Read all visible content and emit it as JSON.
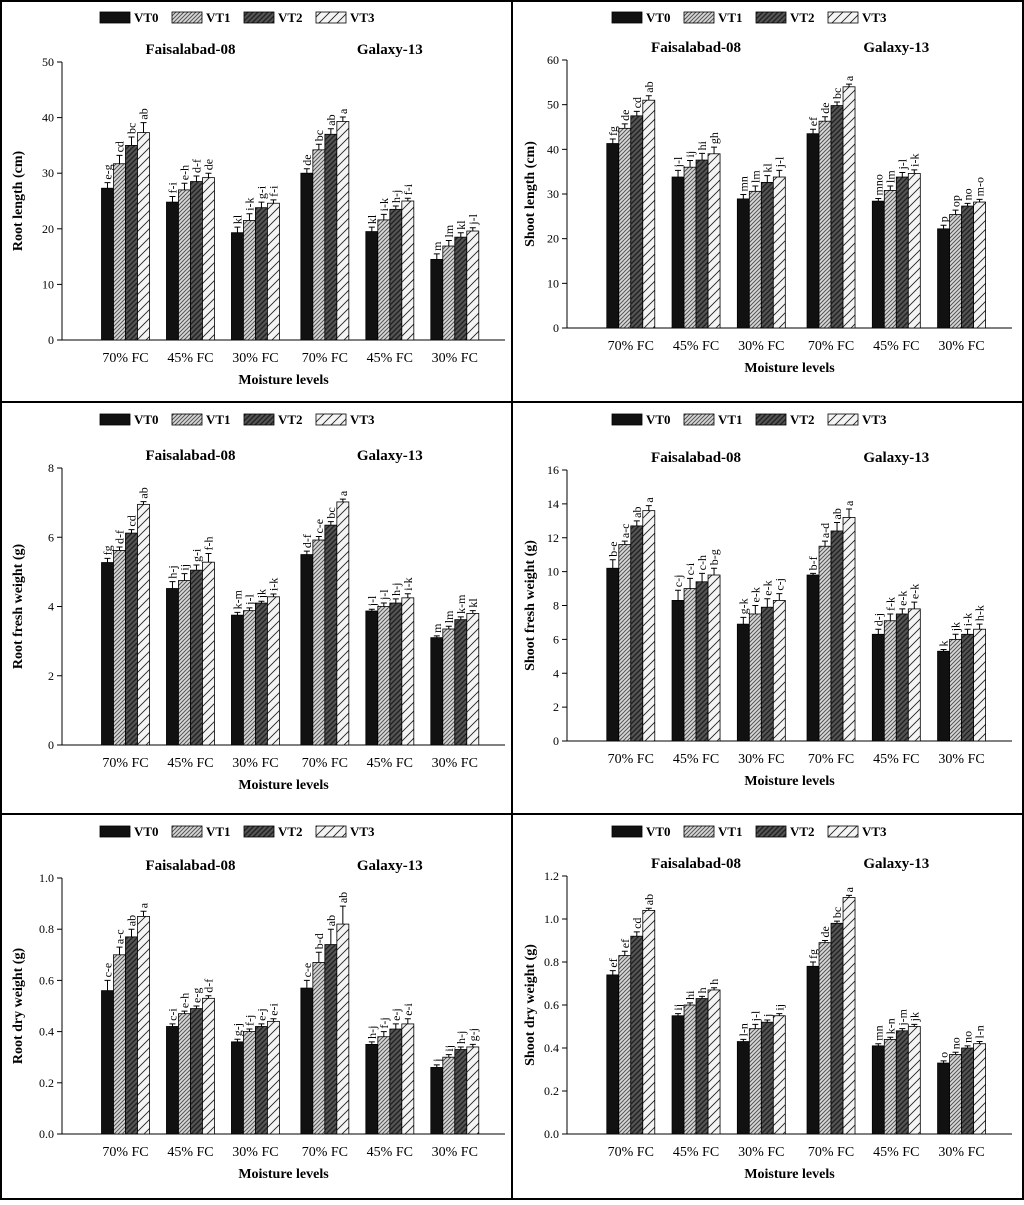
{
  "figure": {
    "legend_entries": [
      "VT0",
      "VT1",
      "VT2",
      "VT3"
    ],
    "groups": [
      "Faisalabad-08",
      "Galaxy-13"
    ],
    "moisture_levels": [
      "70% FC",
      "45% FC",
      "30% FC"
    ],
    "xlabel": "Moisture levels"
  },
  "chart_data": [
    {
      "type": "bar",
      "ylabel": "Root length (cm)",
      "xlabel": "Moisture levels",
      "ylim": [
        0,
        50
      ],
      "yticks": [
        "0",
        "10",
        "20",
        "30",
        "40",
        "50"
      ],
      "groups": [
        "Faisalabad-08",
        "Galaxy-13"
      ],
      "categories": [
        "70% FC",
        "45% FC",
        "30% FC"
      ],
      "series": [
        {
          "name": "VT0",
          "values": [
            [
              27.3,
              24.8,
              19.3
            ],
            [
              30.0,
              19.5,
              14.5
            ]
          ]
        },
        {
          "name": "VT1",
          "values": [
            [
              31.7,
              27.0,
              21.5
            ],
            [
              34.2,
              21.6,
              16.9
            ]
          ]
        },
        {
          "name": "VT2",
          "values": [
            [
              35.0,
              28.5,
              23.8
            ],
            [
              37.0,
              23.5,
              18.5
            ]
          ]
        },
        {
          "name": "VT3",
          "values": [
            [
              37.3,
              29.2,
              24.6
            ],
            [
              39.3,
              25.0,
              19.6
            ]
          ]
        }
      ],
      "errors": [
        [
          [
            1.0,
            1.0,
            1.0
          ],
          [
            0.8,
            0.8,
            1.0
          ]
        ],
        [
          [
            1.5,
            1.2,
            1.2
          ],
          [
            1.0,
            1.0,
            1.0
          ]
        ],
        [
          [
            1.5,
            1.0,
            1.0
          ],
          [
            1.0,
            0.6,
            0.8
          ]
        ],
        [
          [
            1.8,
            0.8,
            0.6
          ],
          [
            0.8,
            0.5,
            0.6
          ]
        ]
      ],
      "letters": [
        [
          [
            "e-g",
            "cd",
            "bc",
            "ab"
          ],
          [
            "f-i",
            "e-h",
            "d-f",
            "de"
          ],
          [
            "kl",
            "i-k",
            "g-i",
            "f-i"
          ]
        ],
        [
          [
            "de",
            "bc",
            "ab",
            "a"
          ],
          [
            "kl",
            "i-k",
            "h-j",
            "f-i"
          ],
          [
            "m",
            "lm",
            "kl",
            "j-l"
          ]
        ]
      ]
    },
    {
      "type": "bar",
      "ylabel": "Shoot length (cm)",
      "xlabel": "Moisture levels",
      "ylim": [
        0,
        60
      ],
      "yticks": [
        "0",
        "10",
        "20",
        "30",
        "40",
        "50",
        "60"
      ],
      "groups": [
        "Faisalabad-08",
        "Galaxy-13"
      ],
      "categories": [
        "70% FC",
        "45% FC",
        "30% FC"
      ],
      "series": [
        {
          "name": "VT0",
          "values": [
            [
              41.3,
              33.8,
              28.9
            ],
            [
              43.5,
              28.4,
              22.2
            ]
          ]
        },
        {
          "name": "VT1",
          "values": [
            [
              44.7,
              36.0,
              30.6
            ],
            [
              46.3,
              30.8,
              25.4
            ]
          ]
        },
        {
          "name": "VT2",
          "values": [
            [
              47.5,
              37.6,
              32.6
            ],
            [
              49.8,
              33.8,
              27.3
            ]
          ]
        },
        {
          "name": "VT3",
          "values": [
            [
              51.0,
              39.0,
              33.8
            ],
            [
              54.0,
              34.6,
              28.2
            ]
          ]
        }
      ],
      "errors": [
        [
          [
            1.0,
            1.5,
            1.0
          ],
          [
            1.0,
            0.6,
            0.8
          ]
        ],
        [
          [
            1.0,
            1.5,
            1.2
          ],
          [
            1.0,
            1.0,
            1.0
          ]
        ],
        [
          [
            1.0,
            1.5,
            1.5
          ],
          [
            0.8,
            1.0,
            0.6
          ]
        ],
        [
          [
            1.0,
            1.5,
            1.5
          ],
          [
            0.6,
            0.8,
            0.6
          ]
        ]
      ],
      "letters": [
        [
          [
            "fg",
            "de",
            "cd",
            "ab"
          ],
          [
            "j-l",
            "ij",
            "hi",
            "gh"
          ],
          [
            "mn",
            "lm",
            "kl",
            "j-l"
          ]
        ],
        [
          [
            "ef",
            "de",
            "bc",
            "a"
          ],
          [
            "mno",
            "lm",
            "j-l",
            "i-k"
          ],
          [
            "p",
            "op",
            "no",
            "m-o"
          ]
        ]
      ]
    },
    {
      "type": "bar",
      "ylabel": "Root fresh weight (g)",
      "xlabel": "Moisture levels",
      "ylim": [
        0,
        8
      ],
      "yticks": [
        "0",
        "2",
        "4",
        "6",
        "8"
      ],
      "groups": [
        "Faisalabad-08",
        "Galaxy-13"
      ],
      "categories": [
        "70% FC",
        "45% FC",
        "30% FC"
      ],
      "series": [
        {
          "name": "VT0",
          "values": [
            [
              5.27,
              4.52,
              3.75
            ],
            [
              5.5,
              3.87,
              3.1
            ]
          ]
        },
        {
          "name": "VT1",
          "values": [
            [
              5.62,
              4.75,
              3.88
            ],
            [
              5.92,
              4.0,
              3.35
            ]
          ]
        },
        {
          "name": "VT2",
          "values": [
            [
              6.12,
              5.05,
              4.1
            ],
            [
              6.35,
              4.1,
              3.62
            ]
          ]
        },
        {
          "name": "VT3",
          "values": [
            [
              6.95,
              5.28,
              4.28
            ],
            [
              7.02,
              4.25,
              3.8
            ]
          ]
        }
      ],
      "errors": [
        [
          [
            0.12,
            0.2,
            0.08
          ],
          [
            0.1,
            0.05,
            0.05
          ]
        ],
        [
          [
            0.1,
            0.2,
            0.08
          ],
          [
            0.1,
            0.1,
            0.08
          ]
        ],
        [
          [
            0.1,
            0.15,
            0.05
          ],
          [
            0.1,
            0.12,
            0.08
          ]
        ],
        [
          [
            0.08,
            0.25,
            0.08
          ],
          [
            0.08,
            0.12,
            0.08
          ]
        ]
      ],
      "letters": [
        [
          [
            "fg",
            "d-f",
            "cd",
            "ab"
          ],
          [
            "h-j",
            "ij",
            "g-i",
            "f-h"
          ],
          [
            "k-m",
            "j-l",
            "jk",
            "i-k"
          ]
        ],
        [
          [
            "d-f",
            "c-e",
            "bc",
            "a"
          ],
          [
            "j-l",
            "j-l",
            "h-j",
            "i-k"
          ],
          [
            "m",
            "lm",
            "k-m",
            "kl"
          ]
        ]
      ]
    },
    {
      "type": "bar",
      "ylabel": "Shoot fresh weight (g)",
      "xlabel": "Moisture levels",
      "ylim": [
        0,
        16
      ],
      "yticks": [
        "0",
        "2",
        "4",
        "6",
        "8",
        "10",
        "12",
        "14",
        "16"
      ],
      "groups": [
        "Faisalabad-08",
        "Galaxy-13"
      ],
      "categories": [
        "70% FC",
        "45% FC",
        "30% FC"
      ],
      "series": [
        {
          "name": "VT0",
          "values": [
            [
              10.2,
              8.3,
              6.9
            ],
            [
              9.8,
              6.3,
              5.3
            ]
          ]
        },
        {
          "name": "VT1",
          "values": [
            [
              11.6,
              9.0,
              7.5
            ],
            [
              11.5,
              7.1,
              6.0
            ]
          ]
        },
        {
          "name": "VT2",
          "values": [
            [
              12.7,
              9.4,
              7.9
            ],
            [
              12.4,
              7.5,
              6.3
            ]
          ]
        },
        {
          "name": "VT3",
          "values": [
            [
              13.6,
              9.8,
              8.3
            ],
            [
              13.2,
              7.8,
              6.6
            ]
          ]
        }
      ],
      "errors": [
        [
          [
            0.5,
            0.6,
            0.4
          ],
          [
            0.1,
            0.3,
            0.1
          ]
        ],
        [
          [
            0.2,
            0.6,
            0.5
          ],
          [
            0.3,
            0.4,
            0.3
          ]
        ],
        [
          [
            0.3,
            0.5,
            0.5
          ],
          [
            0.5,
            0.3,
            0.3
          ]
        ],
        [
          [
            0.3,
            0.4,
            0.4
          ],
          [
            0.5,
            0.4,
            0.3
          ]
        ]
      ],
      "letters": [
        [
          [
            "b-e",
            "a-c",
            "ab",
            "a"
          ],
          [
            "c-j",
            "c-i",
            "c-h",
            "b-g"
          ],
          [
            "g-k",
            "e-k",
            "e-k",
            "c-j"
          ]
        ],
        [
          [
            "b-f",
            "a-d",
            "ab",
            "a"
          ],
          [
            "d-j",
            "f-k",
            "e-k",
            "e-k"
          ],
          [
            "k",
            "jk",
            "i-k",
            "h-k"
          ]
        ]
      ]
    },
    {
      "type": "bar",
      "ylabel": "Root dry weight (g)",
      "xlabel": "Moisture levels",
      "ylim": [
        0,
        1.0
      ],
      "yticks": [
        "0.0",
        "0.2",
        "0.4",
        "0.6",
        "0.8",
        "1.0"
      ],
      "groups": [
        "Faisalabad-08",
        "Galaxy-13"
      ],
      "categories": [
        "70% FC",
        "45% FC",
        "30% FC"
      ],
      "series": [
        {
          "name": "VT0",
          "values": [
            [
              0.56,
              0.42,
              0.36
            ],
            [
              0.57,
              0.35,
              0.26
            ]
          ]
        },
        {
          "name": "VT1",
          "values": [
            [
              0.7,
              0.47,
              0.4
            ],
            [
              0.67,
              0.38,
              0.3
            ]
          ]
        },
        {
          "name": "VT2",
          "values": [
            [
              0.77,
              0.49,
              0.42
            ],
            [
              0.74,
              0.41,
              0.33
            ]
          ]
        },
        {
          "name": "VT3",
          "values": [
            [
              0.85,
              0.53,
              0.44
            ],
            [
              0.82,
              0.43,
              0.34
            ]
          ]
        }
      ],
      "errors": [
        [
          [
            0.04,
            0.01,
            0.01
          ],
          [
            0.03,
            0.01,
            0.01
          ]
        ],
        [
          [
            0.03,
            0.01,
            0.01
          ],
          [
            0.04,
            0.02,
            0.01
          ]
        ],
        [
          [
            0.03,
            0.01,
            0.01
          ],
          [
            0.06,
            0.02,
            0.01
          ]
        ],
        [
          [
            0.02,
            0.01,
            0.01
          ],
          [
            0.07,
            0.02,
            0.01
          ]
        ]
      ],
      "letters": [
        [
          [
            "c-e",
            "a-c",
            "ab",
            "a"
          ],
          [
            "c-i",
            "e-h",
            "e-g",
            "d-f"
          ],
          [
            "g-j",
            "f-j",
            "e-j",
            "e-i"
          ]
        ],
        [
          [
            "c-e",
            "b-d",
            "ab",
            "ab"
          ],
          [
            "h-j",
            "f-j",
            "e-j",
            "e-i"
          ],
          [
            "j",
            "ij",
            "h-j",
            "g-j"
          ]
        ]
      ]
    },
    {
      "type": "bar",
      "ylabel": "Shoot dry weight (g)",
      "xlabel": "Moisture levels",
      "ylim": [
        0,
        1.2
      ],
      "yticks": [
        "0.0",
        "0.2",
        "0.4",
        "0.6",
        "0.8",
        "1.0",
        "1.2"
      ],
      "groups": [
        "Faisalabad-08",
        "Galaxy-13"
      ],
      "categories": [
        "70% FC",
        "45% FC",
        "30% FC"
      ],
      "series": [
        {
          "name": "VT0",
          "values": [
            [
              0.74,
              0.55,
              0.43
            ],
            [
              0.78,
              0.41,
              0.33
            ]
          ]
        },
        {
          "name": "VT1",
          "values": [
            [
              0.83,
              0.6,
              0.49
            ],
            [
              0.89,
              0.44,
              0.37
            ]
          ]
        },
        {
          "name": "VT2",
          "values": [
            [
              0.92,
              0.63,
              0.52
            ],
            [
              0.98,
              0.48,
              0.4
            ]
          ]
        },
        {
          "name": "VT3",
          "values": [
            [
              1.04,
              0.67,
              0.55
            ],
            [
              1.1,
              0.5,
              0.42
            ]
          ]
        }
      ],
      "errors": [
        [
          [
            0.02,
            0.01,
            0.01
          ],
          [
            0.02,
            0.01,
            0.01
          ]
        ],
        [
          [
            0.02,
            0.01,
            0.02
          ],
          [
            0.01,
            0.01,
            0.01
          ]
        ],
        [
          [
            0.02,
            0.01,
            0.01
          ],
          [
            0.01,
            0.01,
            0.01
          ]
        ],
        [
          [
            0.01,
            0.01,
            0.01
          ],
          [
            0.01,
            0.01,
            0.01
          ]
        ]
      ],
      "letters": [
        [
          [
            "ef",
            "ef",
            "cd",
            "ab"
          ],
          [
            "ij",
            "hi",
            "h",
            "h"
          ],
          [
            "l-n",
            "j-l",
            "j",
            "ij"
          ]
        ],
        [
          [
            "fg",
            "de",
            "bc",
            "a"
          ],
          [
            "mn",
            "k-n",
            "j-m",
            "jk"
          ],
          [
            "o",
            "no",
            "no",
            "l-n"
          ]
        ]
      ]
    }
  ]
}
